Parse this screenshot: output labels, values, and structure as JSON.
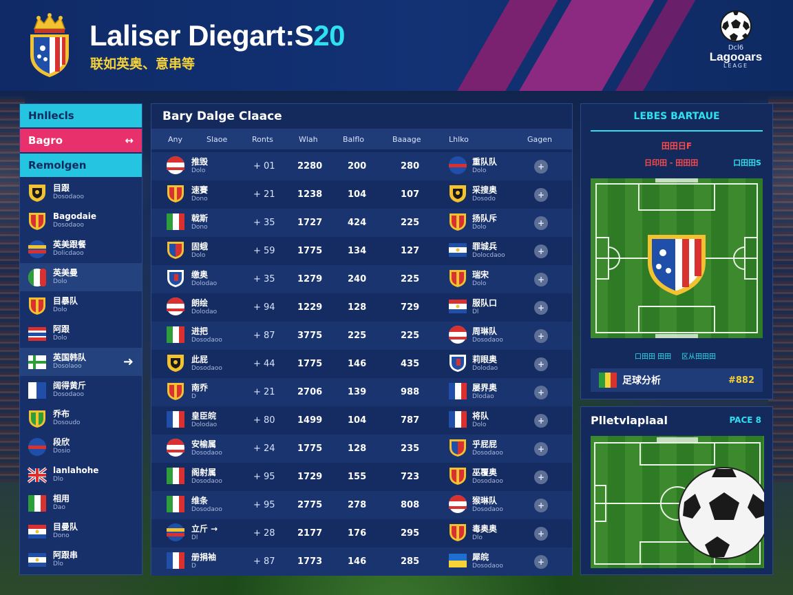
{
  "header": {
    "title_main": "Laliser Diegart:S",
    "title_accent": "20",
    "subtitle": "联如英奥、意串等",
    "brand_top": "Dcl6",
    "brand_name": "Lagooars",
    "brand_sub": "LEAGE"
  },
  "colors": {
    "accent_cyan": "#2ee0f0",
    "accent_pink": "#e8306d",
    "accent_yellow": "#f7d33a",
    "panel_bg": "#142a5c"
  },
  "sidebar": {
    "tabs": [
      {
        "label": "Hnllecls",
        "arrow": ""
      },
      {
        "label": "Bagro",
        "arrow": "↔"
      },
      {
        "label": "Remolgen",
        "arrow": ""
      }
    ],
    "items": [
      {
        "name": "目跟",
        "sub": "Dosodaoo",
        "flag": "crest-yellow"
      },
      {
        "name": "Bagodaie",
        "sub": "Dosodaoo",
        "flag": "crest-red"
      },
      {
        "name": "英美跟餐",
        "sub": "Dolicdaoo",
        "flag": "round-multi"
      },
      {
        "name": "英美曼",
        "sub": "Dolo",
        "flag": "round-italy"
      },
      {
        "name": "目暴队",
        "sub": "Dolo",
        "flag": "crest-red"
      },
      {
        "name": "阿跟",
        "sub": "Dolo",
        "flag": "stripes-rwb"
      },
      {
        "name": "英国韩队",
        "sub": "Dosolaoo",
        "flag": "nordic"
      },
      {
        "name": "阔得黄斤",
        "sub": "Dosodaoo",
        "flag": "blue-white"
      },
      {
        "name": "乔布",
        "sub": "Dosoudo",
        "flag": "crest-green"
      },
      {
        "name": "段欣",
        "sub": "Dosio",
        "flag": "round-rb"
      },
      {
        "name": "lanlahohe",
        "sub": "Dlo",
        "flag": "uk"
      },
      {
        "name": "相用",
        "sub": "Dao",
        "flag": "italy"
      },
      {
        "name": "目曼队",
        "sub": "Dono",
        "flag": "paraguay"
      },
      {
        "name": "阿跟串",
        "sub": "Dlo",
        "flag": "salvador"
      }
    ]
  },
  "main": {
    "title": "Bary Dalge Claace",
    "headers": [
      "Any",
      "Slaoe",
      "Ronts",
      "Wlah",
      "Balflo",
      "Baaage",
      "Lhlko",
      "Gagen"
    ],
    "rows": [
      {
        "flag1": "round-rw",
        "name1": "推毁",
        "sub1": "Dolo",
        "diff": "+ 01",
        "pts": "2280",
        "v1": "200",
        "v2": "280",
        "flag2": "round-rb",
        "name2": "重队队",
        "sub2": "Dolo"
      },
      {
        "flag1": "crest-red",
        "name1": "速賽",
        "sub1": "Dono",
        "diff": "+ 21",
        "pts": "1238",
        "v1": "104",
        "v2": "107",
        "flag2": "crest-yellow",
        "name2": "采搜奥",
        "sub2": "Dosodo"
      },
      {
        "flag1": "italy",
        "name1": "戟斯",
        "sub1": "Dono",
        "diff": "+ 35",
        "pts": "1727",
        "v1": "424",
        "v2": "225",
        "flag2": "crest-red",
        "name2": "扬队斥",
        "sub2": "Dolo"
      },
      {
        "flag1": "crest-multi",
        "name1": "固蛾",
        "sub1": "Dolo",
        "diff": "+ 59",
        "pts": "1775",
        "v1": "134",
        "v2": "127",
        "flag2": "salvador",
        "name2": "罪城兵",
        "sub2": "Dolocdaoo"
      },
      {
        "flag1": "crest-blue",
        "name1": "缴奥",
        "sub1": "Dolodao",
        "diff": "+ 35",
        "pts": "1279",
        "v1": "240",
        "v2": "225",
        "flag2": "crest-red",
        "name2": "瑞宋",
        "sub2": "Dolo"
      },
      {
        "flag1": "round-rw",
        "name1": "朗绘",
        "sub1": "Dolodao",
        "diff": "+ 94",
        "pts": "1229",
        "v1": "128",
        "v2": "729",
        "flag2": "paraguay",
        "name2": "服队口",
        "sub2": "Dl"
      },
      {
        "flag1": "italy",
        "name1": "进把",
        "sub1": "Dosodaoo",
        "diff": "+ 87",
        "pts": "3775",
        "v1": "225",
        "v2": "225",
        "flag2": "round-rw",
        "name2": "周琳队",
        "sub2": "Dosodaoo"
      },
      {
        "flag1": "crest-yellow",
        "name1": "此屁",
        "sub1": "Dosodaoo",
        "diff": "+ 44",
        "pts": "1775",
        "v1": "146",
        "v2": "435",
        "flag2": "crest-blue",
        "name2": "莉眼奥",
        "sub2": "Dolodao"
      },
      {
        "flag1": "crest-red",
        "name1": "南乔",
        "sub1": "D",
        "diff": "+ 21",
        "pts": "2706",
        "v1": "139",
        "v2": "988",
        "flag2": "france",
        "name2": "屡界奥",
        "sub2": "Dlodao"
      },
      {
        "flag1": "france",
        "name1": "皇臣皖",
        "sub1": "Dolodao",
        "diff": "+ 80",
        "pts": "1499",
        "v1": "104",
        "v2": "787",
        "flag2": "france",
        "name2": "将队",
        "sub2": "Dolo"
      },
      {
        "flag1": "round-rw",
        "name1": "安榆属",
        "sub1": "Dosodaoo",
        "diff": "+ 24",
        "pts": "1775",
        "v1": "128",
        "v2": "235",
        "flag2": "crest-multi",
        "name2": "乎屁屁",
        "sub2": "Dosodaoo"
      },
      {
        "flag1": "italy",
        "name1": "阁射属",
        "sub1": "Dosodaoo",
        "diff": "+ 95",
        "pts": "1729",
        "v1": "155",
        "v2": "723",
        "flag2": "crest-red",
        "name2": "巫覆奥",
        "sub2": "Dosodaoo"
      },
      {
        "flag1": "italy",
        "name1": "维条",
        "sub1": "Dosodaoo",
        "diff": "+ 95",
        "pts": "2775",
        "v1": "278",
        "v2": "808",
        "flag2": "round-rw",
        "name2": "猴琳队",
        "sub2": "Dosodaoo"
      },
      {
        "flag1": "round-multi",
        "name1": "立斤 →",
        "sub1": "Dl",
        "diff": "+ 28",
        "pts": "2177",
        "v1": "176",
        "v2": "295",
        "flag2": "crest-red",
        "name2": "毒奥奥",
        "sub2": "Dlo"
      },
      {
        "flag1": "france",
        "name1": "册捐袖",
        "sub1": "D",
        "diff": "+ 87",
        "pts": "1773",
        "v1": "146",
        "v2": "285",
        "flag2": "ukraine",
        "name2": "犀皖",
        "sub2": "Dosodaoo"
      }
    ],
    "row_button": "+"
  },
  "panel_a": {
    "title": "LEBES BARTAUE",
    "red_line": "田田日F",
    "left_label": "日印田 - 田田田",
    "right_label": "口田田S",
    "caption_left": "口田田 田田",
    "caption_right": "区从田田田",
    "footer_label": "足球分析",
    "footer_value": "#882"
  },
  "panel_b": {
    "title": "Plletvlaplaal",
    "right_label": "PACE 8"
  }
}
